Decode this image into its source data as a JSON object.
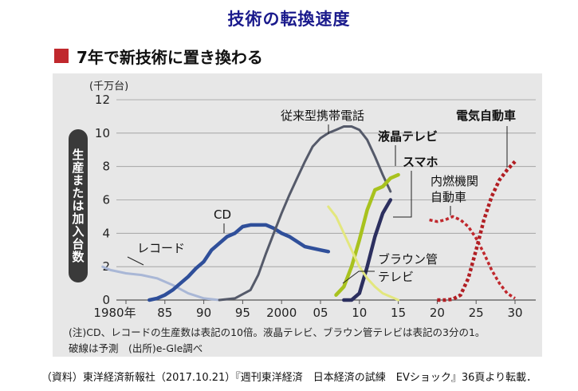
{
  "title": "技術の転換速度",
  "section_heading": "7年で新技術に置き換わる",
  "note_line1": "(注)CD、レコードの生産数は表記の10倍。液晶テレビ、ブラウン管テレビは表記の3分の1。",
  "note_line2": "破線は予測　(出所)e-Gle調べ",
  "source": "（資料）東洋経済新報社（2017.10.21）『週刊東洋経済　日本経済の試練　EVショック』36頁より転載．",
  "colors": {
    "title": "#1a1a8c",
    "heading_square": "#c0282d",
    "panel_bg": "#e7e7e7",
    "record": "#a9b7d6",
    "cd": "#2f4f9a",
    "feature_phone": "#555a6a",
    "lcd_tv": "#a8c21e",
    "smartphone": "#2c2f5f",
    "crt_tv": "#e3e77e",
    "ice_vehicle": "#c0282d",
    "electric_vehicle": "#b11f24"
  },
  "chart_data": {
    "type": "line",
    "unit_label": "(千万台)",
    "ylabel": "生産または加入台数",
    "xlim": [
      1977,
      2031
    ],
    "ylim": [
      0,
      12
    ],
    "x_ticks": [
      {
        "value": 1980,
        "label": "1980年"
      },
      {
        "value": 1985,
        "label": "85"
      },
      {
        "value": 1990,
        "label": "90"
      },
      {
        "value": 1995,
        "label": "95"
      },
      {
        "value": 2000,
        "label": "2000"
      },
      {
        "value": 2005,
        "label": "05"
      },
      {
        "value": 2010,
        "label": "10"
      },
      {
        "value": 2015,
        "label": "15"
      },
      {
        "value": 2020,
        "label": "20"
      },
      {
        "value": 2025,
        "label": "25"
      },
      {
        "value": 2030,
        "label": "30"
      }
    ],
    "y_ticks": [
      0,
      2,
      4,
      6,
      8,
      10,
      12
    ],
    "series": [
      {
        "name": "レコード",
        "style": "solid",
        "x": [
          1977,
          1978,
          1980,
          1982,
          1984,
          1986,
          1988,
          1990,
          1992
        ],
        "y": [
          2.0,
          1.8,
          1.6,
          1.5,
          1.3,
          0.9,
          0.4,
          0.1,
          0.0
        ]
      },
      {
        "name": "CD",
        "style": "solid",
        "x": [
          1983,
          1984,
          1985,
          1986,
          1987,
          1988,
          1989,
          1990,
          1991,
          1992,
          1993,
          1994,
          1995,
          1996,
          1997,
          1998,
          1999,
          2000,
          2001,
          2002,
          2003,
          2004,
          2005,
          2006
        ],
        "y": [
          0.0,
          0.1,
          0.3,
          0.6,
          1.0,
          1.4,
          1.9,
          2.3,
          3.0,
          3.4,
          3.8,
          4.0,
          4.4,
          4.5,
          4.5,
          4.5,
          4.3,
          4.0,
          3.8,
          3.5,
          3.2,
          3.1,
          3.0,
          2.9
        ]
      },
      {
        "name": "従来型携帯電話",
        "style": "solid",
        "x": [
          1992,
          1994,
          1996,
          1997,
          1998,
          1999,
          2000,
          2001,
          2002,
          2003,
          2004,
          2005,
          2006,
          2007,
          2008,
          2009,
          2010,
          2011,
          2012,
          2013,
          2014
        ],
        "y": [
          0.0,
          0.1,
          0.6,
          1.5,
          2.8,
          4.0,
          5.2,
          6.3,
          7.3,
          8.3,
          9.2,
          9.7,
          10.0,
          10.2,
          10.4,
          10.4,
          10.2,
          9.6,
          8.6,
          7.5,
          6.5
        ]
      },
      {
        "name": "液晶テレビ",
        "style": "solid",
        "x": [
          2007,
          2008,
          2009,
          2010,
          2011,
          2012,
          2013,
          2014,
          2015
        ],
        "y": [
          0.3,
          0.8,
          2.0,
          3.6,
          5.4,
          6.6,
          6.8,
          7.3,
          7.5
        ]
      },
      {
        "name": "スマホ",
        "style": "solid",
        "x": [
          2008,
          2009,
          2010,
          2011,
          2012,
          2013,
          2014
        ],
        "y": [
          0.0,
          0.0,
          0.4,
          2.0,
          3.8,
          5.2,
          6.0
        ]
      },
      {
        "name": "ブラウン管テレビ",
        "style": "solid",
        "x": [
          2006,
          2007,
          2008,
          2009,
          2010,
          2011,
          2012,
          2013,
          2014,
          2015
        ],
        "y": [
          5.6,
          5.0,
          4.0,
          3.0,
          2.0,
          1.3,
          0.8,
          0.4,
          0.2,
          0.0
        ]
      },
      {
        "name": "内燃機関自動車",
        "style": "dashed",
        "x": [
          2019,
          2020,
          2021,
          2022,
          2023,
          2024,
          2025,
          2026,
          2027,
          2028,
          2029,
          2030
        ],
        "y": [
          4.8,
          4.7,
          4.8,
          5.0,
          4.8,
          4.4,
          3.7,
          2.8,
          1.8,
          1.0,
          0.4,
          0.1
        ]
      },
      {
        "name": "電気自動車",
        "style": "dashed",
        "x": [
          2020,
          2021,
          2022,
          2023,
          2024,
          2025,
          2026,
          2027,
          2028,
          2029,
          2030
        ],
        "y": [
          0.0,
          0.0,
          0.05,
          0.3,
          1.3,
          3.0,
          4.8,
          6.2,
          7.2,
          7.8,
          8.3
        ]
      }
    ]
  }
}
